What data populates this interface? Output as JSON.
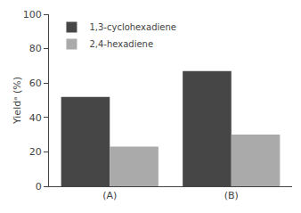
{
  "chart_data": {
    "type": "bar",
    "categories": [
      "(A)",
      "(B)"
    ],
    "series": [
      {
        "name": "1,3-cyclohexadiene",
        "color": "#464646",
        "values": [
          52,
          67
        ]
      },
      {
        "name": "2,4-hexadiene",
        "color": "#aaaaaa",
        "values": [
          23,
          30
        ]
      }
    ],
    "ylabel": "Yieldᵃ (%)",
    "ylim": [
      0,
      100
    ],
    "yticks": [
      0,
      20,
      40,
      60,
      80,
      100
    ],
    "grid": false,
    "legend": "upper left"
  }
}
